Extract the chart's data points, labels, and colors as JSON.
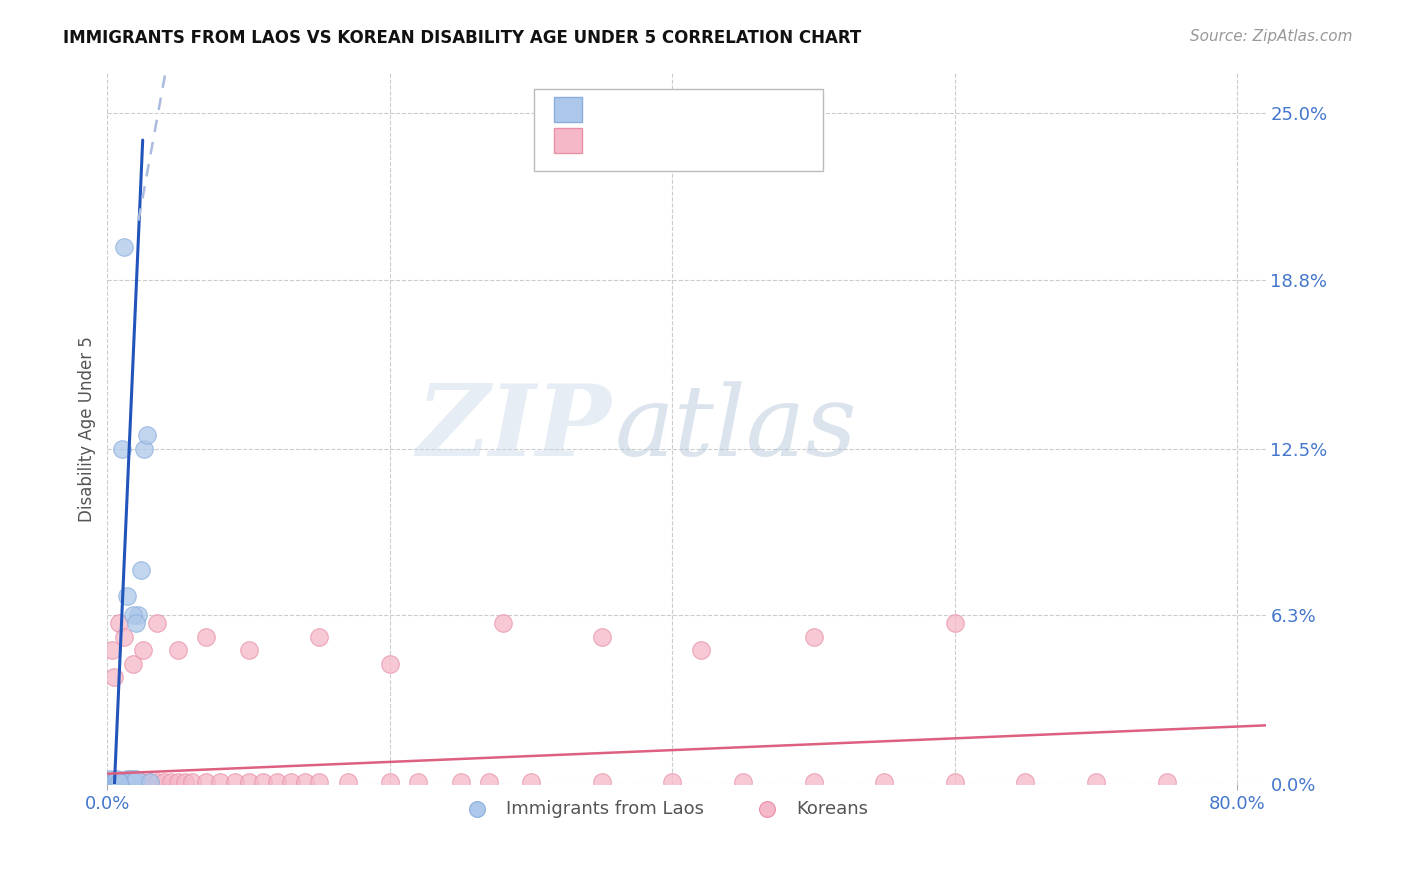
{
  "title": "IMMIGRANTS FROM LAOS VS KOREAN DISABILITY AGE UNDER 5 CORRELATION CHART",
  "source": "Source: ZipAtlas.com",
  "ylabel_label": "Disability Age Under 5",
  "background_color": "#ffffff",
  "blue_scatter_x": [
    0.001,
    0.001,
    0.002,
    0.002,
    0.002,
    0.003,
    0.003,
    0.004,
    0.004,
    0.005,
    0.005,
    0.006,
    0.006,
    0.007,
    0.007,
    0.008,
    0.008,
    0.009,
    0.01,
    0.01,
    0.011,
    0.012,
    0.013,
    0.014,
    0.015,
    0.016,
    0.017,
    0.018,
    0.019,
    0.02,
    0.022,
    0.024,
    0.026,
    0.028,
    0.03,
    0.018,
    0.02,
    0.014,
    0.01,
    0.008,
    0.012
  ],
  "blue_scatter_y": [
    0.0,
    0.001,
    0.0,
    0.001,
    0.002,
    0.0,
    0.001,
    0.0,
    0.001,
    0.0,
    0.001,
    0.0,
    0.001,
    0.0,
    0.002,
    0.0,
    0.001,
    0.0,
    0.0,
    0.001,
    0.001,
    0.001,
    0.001,
    0.002,
    0.001,
    0.002,
    0.001,
    0.002,
    0.001,
    0.002,
    0.063,
    0.08,
    0.125,
    0.13,
    0.001,
    0.063,
    0.06,
    0.07,
    0.125,
    0.001,
    0.2
  ],
  "pink_scatter_x": [
    0.001,
    0.002,
    0.003,
    0.004,
    0.005,
    0.006,
    0.007,
    0.008,
    0.009,
    0.01,
    0.012,
    0.015,
    0.018,
    0.02,
    0.025,
    0.03,
    0.035,
    0.04,
    0.045,
    0.05,
    0.055,
    0.06,
    0.07,
    0.08,
    0.09,
    0.1,
    0.11,
    0.12,
    0.13,
    0.14,
    0.15,
    0.17,
    0.2,
    0.22,
    0.25,
    0.27,
    0.3,
    0.35,
    0.4,
    0.45,
    0.5,
    0.55,
    0.6,
    0.65,
    0.7,
    0.75,
    0.003,
    0.005,
    0.008,
    0.012,
    0.018,
    0.025,
    0.035,
    0.05,
    0.07,
    0.1,
    0.15,
    0.2,
    0.28,
    0.35,
    0.42,
    0.5,
    0.6
  ],
  "pink_scatter_y": [
    0.001,
    0.001,
    0.001,
    0.001,
    0.001,
    0.001,
    0.001,
    0.001,
    0.001,
    0.001,
    0.001,
    0.001,
    0.001,
    0.001,
    0.001,
    0.001,
    0.001,
    0.001,
    0.001,
    0.001,
    0.001,
    0.001,
    0.001,
    0.001,
    0.001,
    0.001,
    0.001,
    0.001,
    0.001,
    0.001,
    0.001,
    0.001,
    0.001,
    0.001,
    0.001,
    0.001,
    0.001,
    0.001,
    0.001,
    0.001,
    0.001,
    0.001,
    0.001,
    0.001,
    0.001,
    0.001,
    0.05,
    0.04,
    0.06,
    0.055,
    0.045,
    0.05,
    0.06,
    0.05,
    0.055,
    0.05,
    0.055,
    0.045,
    0.06,
    0.055,
    0.05,
    0.055,
    0.06
  ],
  "xlim": [
    0.0,
    0.82
  ],
  "ylim": [
    0.0,
    0.265
  ],
  "ytick_vals": [
    0.0,
    0.063,
    0.125,
    0.188,
    0.25
  ],
  "ytick_labels": [
    "0.0%",
    "6.3%",
    "12.5%",
    "18.8%",
    "25.0%"
  ],
  "xtick_vals": [
    0.0,
    0.8
  ],
  "xtick_labels": [
    "0.0%",
    "80.0%"
  ]
}
